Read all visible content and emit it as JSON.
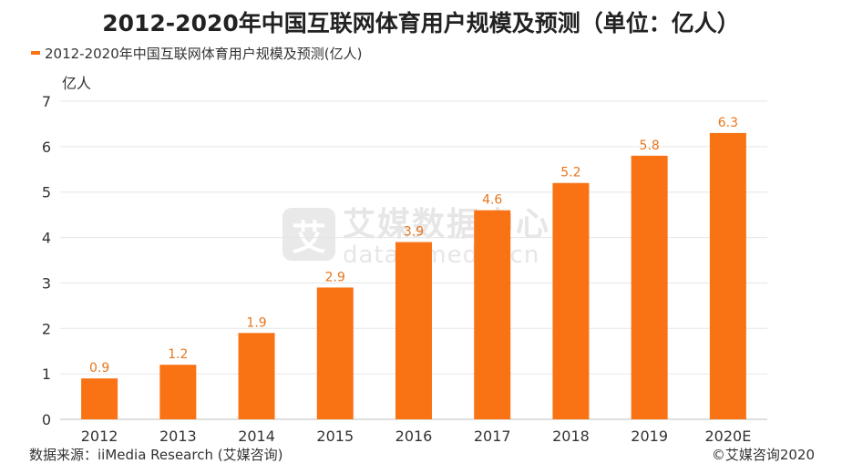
{
  "title": "2012-2020年中国互联网体育用户规模及预测（单位：亿人）",
  "footer": {
    "source": "数据来源：iiMedia Research (艾媒咨询)",
    "copyright": "©艾媒咨询2020"
  },
  "watermark": {
    "logo_char": "艾",
    "cn": "艾媒数据中心",
    "en": "data.iimedia.cn"
  },
  "colors": {
    "bar": "#F97315",
    "label": "#E8761E",
    "grid": "#E6E6E6"
  },
  "chart_data": {
    "type": "bar",
    "title": "2012-2020年中国互联网体育用户规模及预测（单位：亿人）",
    "ylabel": "亿人",
    "xlabel": "",
    "ylim": [
      0,
      7
    ],
    "yticks": [
      "0",
      "1",
      "2",
      "3",
      "4",
      "5",
      "6",
      "7"
    ],
    "categories": [
      "2012",
      "2013",
      "2014",
      "2015",
      "2016",
      "2017",
      "2018",
      "2019",
      "2020E"
    ],
    "series": [
      {
        "name": "2012-2020年中国互联网体育用户规模及预测(亿人)",
        "values": [
          0.9,
          1.2,
          1.9,
          2.9,
          3.9,
          4.6,
          5.2,
          5.8,
          6.3
        ],
        "labels": [
          "0.9",
          "1.2",
          "1.9",
          "2.9",
          "3.9",
          "4.6",
          "5.2",
          "5.8",
          "6.3"
        ]
      }
    ],
    "grid": true,
    "legend_position": "top-left"
  }
}
